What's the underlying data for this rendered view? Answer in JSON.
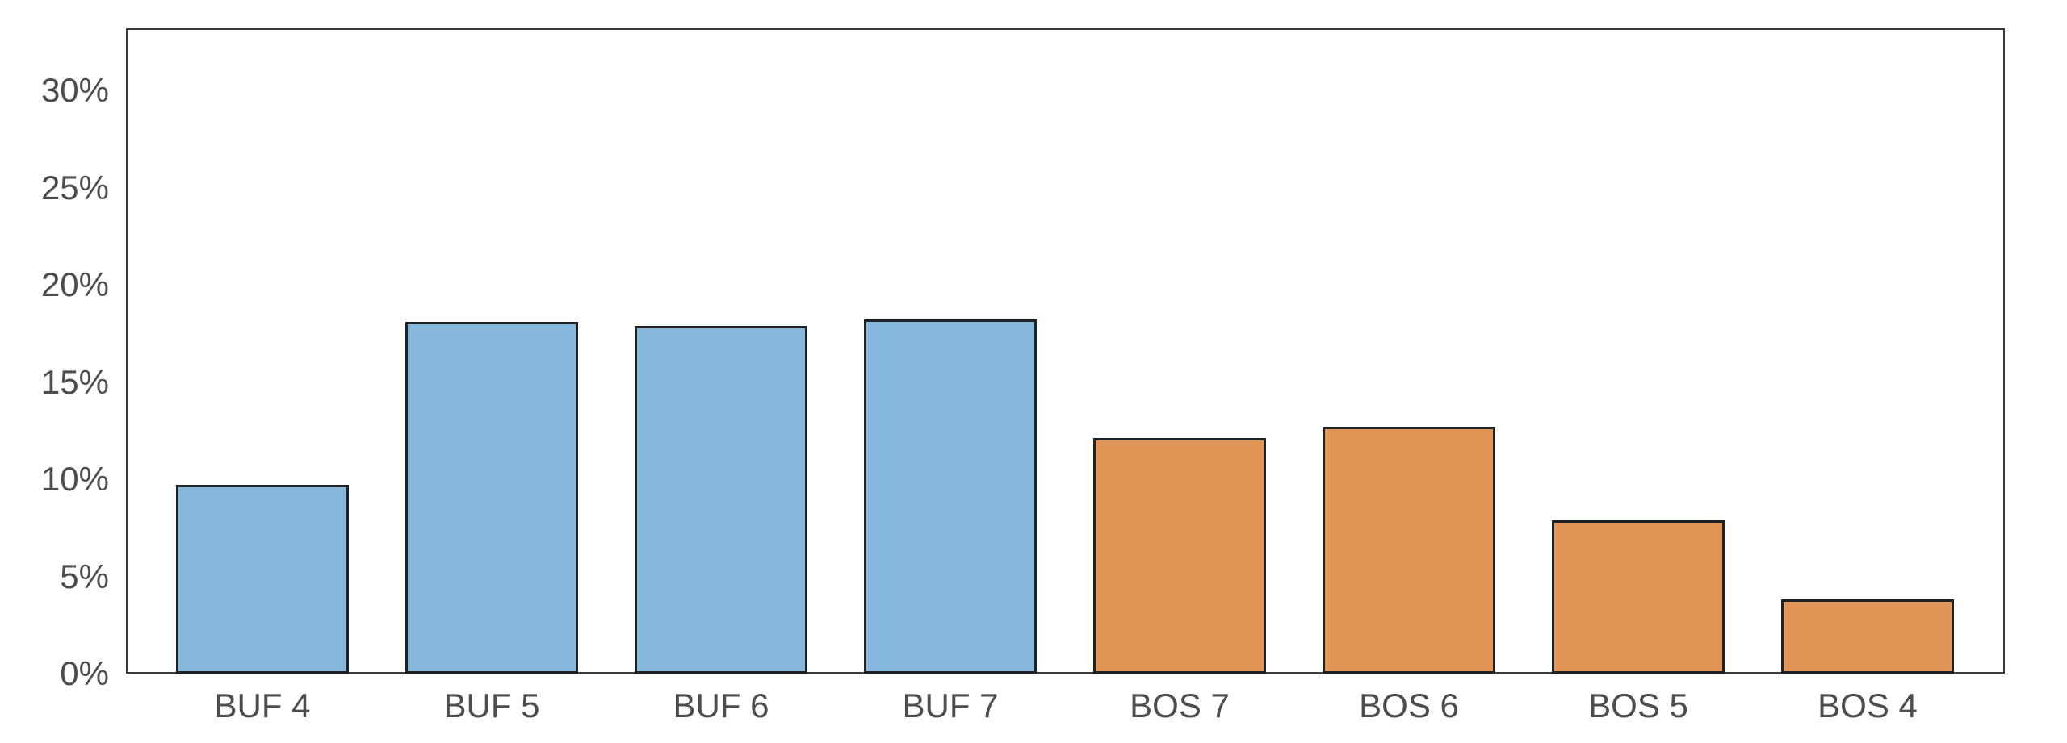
{
  "chart_data": {
    "type": "bar",
    "title": "",
    "xlabel": "",
    "ylabel": "",
    "categories": [
      "BUF 4",
      "BUF 5",
      "BUF 6",
      "BUF 7",
      "BOS 7",
      "BOS 6",
      "BOS 5",
      "BOS 4"
    ],
    "values": [
      9.7,
      18.1,
      17.9,
      18.2,
      12.1,
      12.7,
      7.9,
      3.8
    ],
    "unit": "%",
    "bar_colors": [
      "#85b8dc",
      "#85b8dc",
      "#85b8dc",
      "#85b8dc",
      "#e19556",
      "#e19556",
      "#e19556",
      "#e19556"
    ],
    "ylim": [
      0,
      33.2
    ],
    "yticks": [
      {
        "value": 0,
        "label": "0%"
      },
      {
        "value": 5,
        "label": "5%"
      },
      {
        "value": 10,
        "label": "10%"
      },
      {
        "value": 15,
        "label": "15%"
      },
      {
        "value": 20,
        "label": "20%"
      },
      {
        "value": 25,
        "label": "25%"
      },
      {
        "value": 30,
        "label": "30%"
      }
    ],
    "grid": false,
    "legend": null,
    "colors": {
      "buf_blue": "#85b8dc",
      "bos_orange": "#e19556",
      "bar_edge": "#1e2226",
      "spine": "#3a3a3a",
      "tick_label": "#4d4d4d",
      "background": "#ffffff"
    }
  }
}
